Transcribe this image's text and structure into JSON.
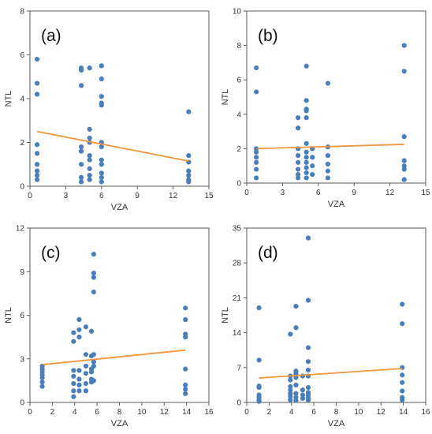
{
  "chart_data": [
    {
      "type": "scatter",
      "panel_label": "(a)",
      "xlabel": "VZA",
      "ylabel": "NTL",
      "xlim": [
        0,
        15
      ],
      "ylim": [
        0,
        8
      ],
      "xticks": [
        0,
        3,
        6,
        9,
        12,
        15
      ],
      "yticks": [
        0,
        2,
        4,
        6,
        8
      ],
      "point_color": "#4a7ebb",
      "trend_color": "#f0963c",
      "points": [
        [
          0.6,
          5.8
        ],
        [
          0.6,
          4.7
        ],
        [
          0.6,
          4.2
        ],
        [
          0.6,
          1.9
        ],
        [
          0.6,
          1.5
        ],
        [
          0.6,
          1.0
        ],
        [
          0.6,
          0.7
        ],
        [
          0.6,
          0.5
        ],
        [
          0.6,
          0.3
        ],
        [
          4.3,
          5.4
        ],
        [
          4.3,
          5.3
        ],
        [
          4.3,
          4.6
        ],
        [
          4.3,
          1.8
        ],
        [
          4.3,
          1.6
        ],
        [
          4.3,
          1.0
        ],
        [
          4.3,
          0.4
        ],
        [
          4.3,
          0.2
        ],
        [
          5.0,
          5.4
        ],
        [
          5.0,
          2.6
        ],
        [
          5.0,
          2.2
        ],
        [
          5.0,
          2.0
        ],
        [
          5.0,
          1.4
        ],
        [
          5.0,
          1.2
        ],
        [
          5.0,
          0.8
        ],
        [
          5.0,
          0.5
        ],
        [
          5.0,
          0.3
        ],
        [
          6.0,
          5.5
        ],
        [
          6.0,
          4.9
        ],
        [
          6.0,
          4.1
        ],
        [
          6.0,
          3.8
        ],
        [
          6.0,
          3.7
        ],
        [
          6.0,
          2.0
        ],
        [
          6.0,
          1.8
        ],
        [
          6.0,
          1.2
        ],
        [
          6.0,
          1.0
        ],
        [
          6.0,
          0.6
        ],
        [
          6.0,
          0.4
        ],
        [
          6.0,
          0.2
        ],
        [
          13.3,
          3.4
        ],
        [
          13.3,
          1.4
        ],
        [
          13.3,
          1.1
        ],
        [
          13.3,
          0.7
        ],
        [
          13.3,
          0.5
        ],
        [
          13.3,
          0.3
        ],
        [
          13.3,
          0.2
        ]
      ],
      "trend": [
        [
          0.6,
          2.5
        ],
        [
          13.3,
          1.15
        ]
      ]
    },
    {
      "type": "scatter",
      "panel_label": "(b)",
      "xlabel": "VZA",
      "ylabel": "NTL",
      "xlim": [
        0,
        15
      ],
      "ylim": [
        0,
        10
      ],
      "xticks": [
        0,
        3,
        6,
        9,
        12,
        15
      ],
      "yticks": [
        0,
        2,
        4,
        6,
        8,
        10
      ],
      "point_color": "#4a7ebb",
      "trend_color": "#f0963c",
      "points": [
        [
          0.8,
          6.7
        ],
        [
          0.8,
          5.3
        ],
        [
          0.8,
          2.0
        ],
        [
          0.8,
          1.8
        ],
        [
          0.8,
          1.5
        ],
        [
          0.8,
          1.2
        ],
        [
          0.8,
          0.8
        ],
        [
          0.8,
          0.3
        ],
        [
          4.3,
          3.8
        ],
        [
          4.3,
          3.2
        ],
        [
          4.3,
          2.0
        ],
        [
          4.3,
          1.6
        ],
        [
          4.3,
          1.2
        ],
        [
          4.3,
          0.8
        ],
        [
          4.3,
          0.5
        ],
        [
          4.3,
          0.3
        ],
        [
          5.0,
          6.8
        ],
        [
          5.0,
          4.8
        ],
        [
          5.0,
          4.3
        ],
        [
          5.0,
          4.2
        ],
        [
          5.0,
          3.8
        ],
        [
          5.0,
          2.3
        ],
        [
          5.0,
          1.8
        ],
        [
          5.0,
          1.5
        ],
        [
          5.0,
          1.2
        ],
        [
          5.0,
          0.9
        ],
        [
          5.0,
          0.6
        ],
        [
          5.0,
          0.3
        ],
        [
          5.5,
          2.0
        ],
        [
          5.5,
          1.5
        ],
        [
          5.5,
          1.0
        ],
        [
          5.5,
          0.5
        ],
        [
          6.8,
          5.8
        ],
        [
          6.8,
          2.1
        ],
        [
          6.8,
          1.6
        ],
        [
          6.8,
          1.1
        ],
        [
          6.8,
          0.7
        ],
        [
          6.8,
          0.3
        ],
        [
          13.2,
          8.0
        ],
        [
          13.2,
          6.5
        ],
        [
          13.2,
          2.7
        ],
        [
          13.2,
          1.3
        ],
        [
          13.2,
          1.0
        ],
        [
          13.2,
          0.8
        ],
        [
          13.2,
          0.2
        ]
      ],
      "trend": [
        [
          0.8,
          2.0
        ],
        [
          13.2,
          2.25
        ]
      ]
    },
    {
      "type": "scatter",
      "panel_label": "(c)",
      "xlabel": "VZA",
      "ylabel": "NTL",
      "xlim": [
        0,
        16
      ],
      "ylim": [
        0,
        12
      ],
      "xticks": [
        0,
        2,
        4,
        6,
        8,
        10,
        12,
        14,
        16
      ],
      "yticks": [
        0,
        3,
        6,
        9,
        12
      ],
      "point_color": "#4a7ebb",
      "trend_color": "#f0963c",
      "points": [
        [
          1.1,
          2.5
        ],
        [
          1.1,
          2.3
        ],
        [
          1.1,
          2.1
        ],
        [
          1.1,
          1.9
        ],
        [
          1.1,
          1.7
        ],
        [
          1.1,
          1.4
        ],
        [
          1.1,
          1.1
        ],
        [
          3.9,
          4.8
        ],
        [
          3.9,
          4.2
        ],
        [
          3.9,
          2.2
        ],
        [
          3.9,
          1.8
        ],
        [
          3.9,
          1.3
        ],
        [
          3.9,
          0.8
        ],
        [
          3.9,
          0.4
        ],
        [
          4.4,
          5.7
        ],
        [
          4.4,
          5.0
        ],
        [
          4.4,
          4.5
        ],
        [
          4.4,
          2.2
        ],
        [
          4.4,
          1.6
        ],
        [
          4.4,
          1.2
        ],
        [
          4.4,
          0.8
        ],
        [
          5.0,
          5.2
        ],
        [
          5.0,
          3.3
        ],
        [
          5.0,
          2.5
        ],
        [
          5.0,
          2.0
        ],
        [
          5.0,
          1.3
        ],
        [
          5.0,
          0.8
        ],
        [
          5.5,
          4.9
        ],
        [
          5.5,
          3.2
        ],
        [
          5.5,
          2.3
        ],
        [
          5.5,
          2.1
        ],
        [
          5.5,
          1.6
        ],
        [
          5.5,
          1.4
        ],
        [
          5.7,
          10.2
        ],
        [
          5.7,
          8.9
        ],
        [
          5.7,
          8.6
        ],
        [
          5.7,
          7.6
        ],
        [
          5.7,
          3.3
        ],
        [
          5.7,
          2.8
        ],
        [
          5.7,
          2.5
        ],
        [
          5.7,
          1.5
        ],
        [
          13.9,
          6.5
        ],
        [
          13.9,
          5.7
        ],
        [
          13.9,
          4.7
        ],
        [
          13.9,
          4.5
        ],
        [
          13.9,
          2.3
        ],
        [
          13.9,
          1.2
        ],
        [
          13.9,
          0.9
        ],
        [
          13.9,
          0.6
        ]
      ],
      "trend": [
        [
          1.1,
          2.6
        ],
        [
          13.9,
          3.6
        ]
      ]
    },
    {
      "type": "scatter",
      "panel_label": "(d)",
      "xlabel": "VZA",
      "ylabel": "NTL",
      "xlim": [
        0,
        16
      ],
      "ylim": [
        0,
        35
      ],
      "xticks": [
        0,
        2,
        4,
        6,
        8,
        10,
        12,
        14,
        16
      ],
      "yticks": [
        0,
        7,
        14,
        21,
        28,
        35
      ],
      "point_color": "#4a7ebb",
      "trend_color": "#f0963c",
      "points": [
        [
          1.1,
          19.0
        ],
        [
          1.1,
          8.5
        ],
        [
          1.1,
          3.3
        ],
        [
          1.1,
          3.0
        ],
        [
          1.1,
          1.5
        ],
        [
          1.1,
          1.0
        ],
        [
          1.1,
          0.5
        ],
        [
          1.1,
          0.2
        ],
        [
          3.9,
          13.7
        ],
        [
          3.9,
          5.3
        ],
        [
          3.9,
          4.5
        ],
        [
          3.9,
          3.2
        ],
        [
          3.9,
          2.5
        ],
        [
          3.9,
          1.8
        ],
        [
          3.9,
          1.2
        ],
        [
          3.9,
          0.5
        ],
        [
          4.4,
          19.3
        ],
        [
          4.4,
          15.0
        ],
        [
          4.4,
          6.3
        ],
        [
          4.4,
          5.8
        ],
        [
          4.4,
          5.0
        ],
        [
          4.4,
          3.5
        ],
        [
          4.4,
          1.8
        ],
        [
          4.4,
          1.0
        ],
        [
          4.4,
          0.4
        ],
        [
          5.0,
          5.3
        ],
        [
          5.0,
          2.5
        ],
        [
          5.0,
          1.5
        ],
        [
          5.0,
          0.8
        ],
        [
          5.5,
          33.0
        ],
        [
          5.5,
          20.5
        ],
        [
          5.5,
          11.0
        ],
        [
          5.5,
          8.2
        ],
        [
          5.5,
          6.5
        ],
        [
          5.5,
          5.3
        ],
        [
          5.5,
          3.0
        ],
        [
          5.5,
          2.0
        ],
        [
          5.5,
          1.5
        ],
        [
          5.5,
          1.0
        ],
        [
          5.5,
          0.5
        ],
        [
          13.9,
          19.7
        ],
        [
          13.9,
          15.8
        ],
        [
          13.9,
          7.0
        ],
        [
          13.9,
          5.5
        ],
        [
          13.9,
          4.0
        ],
        [
          13.9,
          2.3
        ],
        [
          13.9,
          1.0
        ],
        [
          13.9,
          0.5
        ]
      ],
      "trend": [
        [
          1.1,
          4.9
        ],
        [
          13.9,
          6.8
        ]
      ]
    }
  ]
}
